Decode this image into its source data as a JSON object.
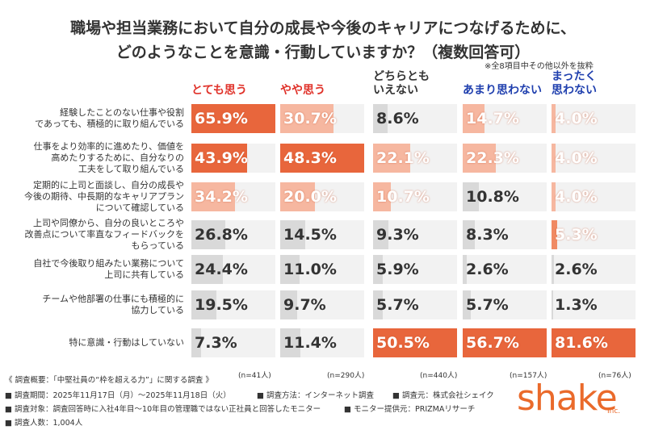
{
  "chart_data": {
    "type": "bar",
    "title": "職場や担当業務において自分の成長や今後のキャリアにつなげるために、\nどのようなことを意識・行動していますか？（複数回答可）",
    "note": "※全8項目中その他以外を抜粋",
    "categories": [
      "経験したことのない仕事や役割\nであっても、積極的に取り組んでいる",
      "仕事をより効率的に進めたり、価値を\n高めたりするために、自分なりの\n工夫をして取り組んでいる",
      "定期的に上司と面談し、自分の成長や\n今後の期待、中長期的なキャリアプラン\nについて確認している",
      "上司や同僚から、自分の良いところや\n改善点について率直なフィードバックを\nもらっている",
      "自社で今後取り組みたい業務について\n上司に共有している",
      "チームや他部署の仕事にも積極的に\n協力している",
      "特に意識・行動はしていない"
    ],
    "neutral_color": "#d9d9d9",
    "series": [
      {
        "name": "とても思う",
        "name_color": "#e0322a",
        "n_label": "(n=41人)",
        "xlim": [
          0,
          65.9
        ],
        "values": [
          65.9,
          43.9,
          34.2,
          26.8,
          24.4,
          19.5,
          7.3
        ],
        "value_labels": [
          "65.9%",
          "43.9%",
          "34.2%",
          "26.8%",
          "24.4%",
          "19.5%",
          "7.3%"
        ],
        "colors": [
          "#e8663c",
          "#e8663c",
          "#f6b7a0",
          "#d9d9d9",
          "#d9d9d9",
          "#d9d9d9",
          "#d9d9d9"
        ]
      },
      {
        "name": "やや思う",
        "name_color": "#e0322a",
        "n_label": "(n=290人)",
        "xlim": [
          0,
          48.3
        ],
        "values": [
          30.7,
          48.3,
          20,
          14.5,
          11,
          9.7,
          11.4
        ],
        "value_labels": [
          "30.7%",
          "48.3%",
          "20.0%",
          "14.5%",
          "11.0%",
          "9.7%",
          "11.4%"
        ],
        "colors": [
          "#f6b7a0",
          "#e8663c",
          "#f6b7a0",
          "#d9d9d9",
          "#d9d9d9",
          "#d9d9d9",
          "#d9d9d9"
        ]
      },
      {
        "name": "どちらとも\nいえない",
        "name_color": "#333333",
        "n_label": "(n=440人)",
        "xlim": [
          0,
          50.5
        ],
        "values": [
          8.6,
          22.1,
          10.7,
          9.3,
          5.9,
          5.7,
          50.5
        ],
        "value_labels": [
          "8.6%",
          "22.1%",
          "10.7%",
          "9.3%",
          "5.9%",
          "5.7%",
          "50.5%"
        ],
        "colors": [
          "#d9d9d9",
          "#f6b7a0",
          "#f6b7a0",
          "#d9d9d9",
          "#d9d9d9",
          "#d9d9d9",
          "#e8663c"
        ]
      },
      {
        "name": "あまり思わない",
        "name_color": "#1f3fae",
        "n_label": "(n=157人)",
        "xlim": [
          0,
          56.7
        ],
        "values": [
          14.7,
          22.3,
          10.8,
          8.3,
          2.6,
          5.7,
          56.7
        ],
        "value_labels": [
          "14.7%",
          "22.3%",
          "10.8%",
          "8.3%",
          "2.6%",
          "5.7%",
          "56.7%"
        ],
        "colors": [
          "#f6b7a0",
          "#f6b7a0",
          "#d9d9d9",
          "#d9d9d9",
          "#d9d9d9",
          "#d9d9d9",
          "#e8663c"
        ]
      },
      {
        "name": "まったく\n思わない",
        "name_color": "#1f3fae",
        "n_label": "(n=76人)",
        "xlim": [
          0,
          81.6
        ],
        "values": [
          4,
          4,
          4,
          5.3,
          2.6,
          1.3,
          81.6
        ],
        "value_labels": [
          "4.0%",
          "4.0%",
          "4.0%",
          "5.3%",
          "2.6%",
          "1.3%",
          "81.6%"
        ],
        "colors": [
          "#f6b7a0",
          "#f6b7a0",
          "#f6b7a0",
          "#f08a63",
          "#d9d9d9",
          "#d9d9d9",
          "#e8663c"
        ]
      }
    ]
  },
  "footer": {
    "heading": "《 調査概要：「中堅社員の“枠を超える力”」に関する調査 》",
    "period": "■ 調査期間：2025年11月17日（月）～2025年11月18日（火）",
    "method": "■ 調査方法：インターネット調査",
    "source": "■ 調査元：株式会社シェイク",
    "target": "■ 調査対象：調査回答時に入社4年目～10年目の管理職ではない正社員と回答したモニター",
    "provider": "■ モニター提供元：PRIZMAリサーチ",
    "count": "■ 調査人数：1,004人"
  },
  "logo": {
    "text": "shake",
    "suffix": "Inc."
  }
}
